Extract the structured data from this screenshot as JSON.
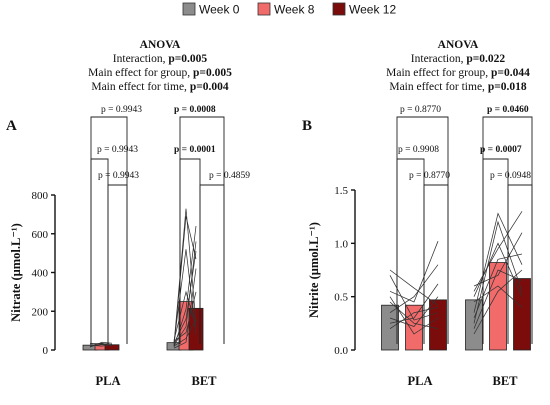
{
  "legend": [
    {
      "label": "Week 0",
      "color": "#8c8c8c"
    },
    {
      "label": "Week 8",
      "color": "#f26b6b"
    },
    {
      "label": "Week 12",
      "color": "#7b0c0c"
    }
  ],
  "chart_data": [
    {
      "panel": "A",
      "type": "bar",
      "ylabel": "Nitrate (μmol.L⁻¹)",
      "ylim": [
        0,
        800
      ],
      "yticks": [
        0,
        200,
        400,
        600,
        800
      ],
      "categories": [
        "PLA",
        "BET"
      ],
      "series": [
        {
          "name": "Week 0",
          "values": [
            25,
            38
          ]
        },
        {
          "name": "Week 8",
          "values": [
            32,
            250
          ]
        },
        {
          "name": "Week 12",
          "values": [
            27,
            215
          ]
        }
      ],
      "individual_lines": {
        "PLA": [
          [
            15,
            40,
            35
          ],
          [
            20,
            28,
            25
          ],
          [
            30,
            35,
            22
          ],
          [
            25,
            20,
            30
          ],
          [
            35,
            30,
            25
          ]
        ],
        "BET": [
          [
            30,
            730,
            140
          ],
          [
            20,
            690,
            470
          ],
          [
            40,
            520,
            80
          ],
          [
            15,
            210,
            640
          ],
          [
            25,
            120,
            560
          ],
          [
            35,
            160,
            510
          ],
          [
            45,
            90,
            300
          ],
          [
            20,
            60,
            160
          ],
          [
            10,
            40,
            420
          ],
          [
            50,
            300,
            120
          ]
        ]
      },
      "anova": {
        "title": "ANOVA",
        "lines": [
          {
            "label": "Interaction, ",
            "value": "p=0.005"
          },
          {
            "label": "Main effect for group, ",
            "value": "p=0.005"
          },
          {
            "label": "Main effect for time, ",
            "value": "p=0.004"
          }
        ]
      },
      "comparisons": {
        "PLA": {
          "w0_w12": "p = 0.9943",
          "w0_w8": "p = 0.9943",
          "w8_w12": "p = 0.9943"
        },
        "BET": {
          "w0_w12": "p = 0.0008",
          "w0_w8": "p = 0.0001",
          "w8_w12": "p = 0.4859"
        }
      },
      "bold_comparisons": [
        "p = 0.0008",
        "p = 0.0001"
      ]
    },
    {
      "panel": "B",
      "type": "bar",
      "ylabel": "Nitrite (μmol.L⁻¹)",
      "ylim": [
        0,
        1.5
      ],
      "yticks": [
        "0.0",
        "0.5",
        "1.0",
        "1.5"
      ],
      "categories": [
        "PLA",
        "BET"
      ],
      "series": [
        {
          "name": "Week 0",
          "values": [
            0.42,
            0.47
          ]
        },
        {
          "name": "Week 8",
          "values": [
            0.42,
            0.82
          ]
        },
        {
          "name": "Week 12",
          "values": [
            0.47,
            0.67
          ]
        }
      ],
      "individual_lines": {
        "PLA": [
          [
            0.75,
            0.58,
            0.42
          ],
          [
            0.7,
            0.28,
            0.35
          ],
          [
            0.55,
            0.45,
            1.02
          ],
          [
            0.35,
            0.5,
            0.8
          ],
          [
            0.25,
            0.3,
            0.62
          ],
          [
            0.3,
            0.22,
            0.5
          ],
          [
            0.2,
            0.35,
            0.4
          ],
          [
            0.45,
            0.25,
            0.2
          ],
          [
            0.5,
            0.15,
            0.3
          ]
        ],
        "BET": [
          [
            0.35,
            1.28,
            0.8
          ],
          [
            0.25,
            1.2,
            0.55
          ],
          [
            0.55,
            0.95,
            1.3
          ],
          [
            0.6,
            0.7,
            1.1
          ],
          [
            0.3,
            0.85,
            0.9
          ],
          [
            0.45,
            0.6,
            0.4
          ],
          [
            0.2,
            0.75,
            0.65
          ],
          [
            0.5,
            1.0,
            0.5
          ],
          [
            0.15,
            0.55,
            0.75
          ]
        ]
      },
      "anova": {
        "title": "ANOVA",
        "lines": [
          {
            "label": "Interaction, ",
            "value": "p=0.022"
          },
          {
            "label": "Main effect for group, ",
            "value": "p=0.044"
          },
          {
            "label": "Main effect for time, ",
            "value": "p=0.018"
          }
        ]
      },
      "comparisons": {
        "PLA": {
          "w0_w12": "p = 0.8770",
          "w0_w8": "p = 0.9908",
          "w8_w12": "p = 0.8770"
        },
        "BET": {
          "w0_w12": "p = 0.0460",
          "w0_w8": "p = 0.0007",
          "w8_w12": "p = 0.0948"
        }
      },
      "bold_comparisons": [
        "p = 0.0460",
        "p = 0.0007"
      ]
    }
  ]
}
